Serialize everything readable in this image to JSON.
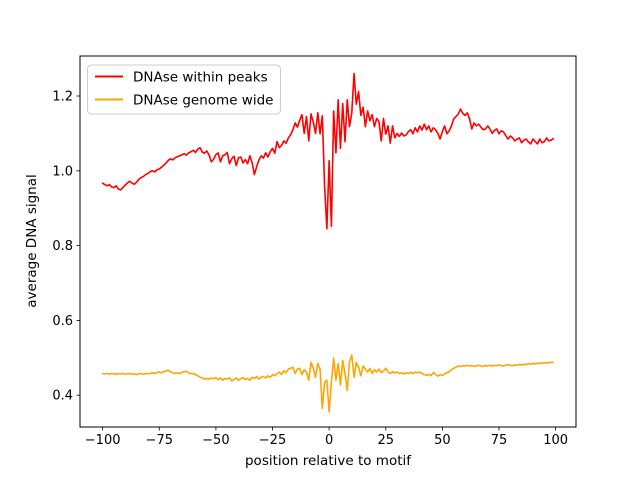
{
  "figure": {
    "background": "#ffffff"
  },
  "chart_data": {
    "type": "line",
    "title": "",
    "xlabel": "position relative to motif",
    "ylabel": "average DNA signal",
    "xlim": [
      -110,
      109
    ],
    "ylim": [
      0.315,
      1.307
    ],
    "xticks": [
      -100,
      -75,
      -50,
      -25,
      0,
      25,
      50,
      75,
      100
    ],
    "xtick_labels": [
      "−100",
      "−75",
      "−50",
      "−25",
      "0",
      "25",
      "50",
      "75",
      "100"
    ],
    "yticks": [
      0.4,
      0.6,
      0.8,
      1.0,
      1.2
    ],
    "ytick_labels": [
      "0.4",
      "0.6",
      "0.8",
      "1.0",
      "1.2"
    ],
    "grid": false,
    "legend": {
      "position": "upper left",
      "border_color": "#cccccc"
    },
    "x": [
      -100,
      -99,
      -98,
      -97,
      -96,
      -95,
      -94,
      -93,
      -92,
      -91,
      -90,
      -89,
      -88,
      -87,
      -86,
      -85,
      -84,
      -83,
      -82,
      -81,
      -80,
      -79,
      -78,
      -77,
      -76,
      -75,
      -74,
      -73,
      -72,
      -71,
      -70,
      -69,
      -68,
      -67,
      -66,
      -65,
      -64,
      -63,
      -62,
      -61,
      -60,
      -59,
      -58,
      -57,
      -56,
      -55,
      -54,
      -53,
      -52,
      -51,
      -50,
      -49,
      -48,
      -47,
      -46,
      -45,
      -44,
      -43,
      -42,
      -41,
      -40,
      -39,
      -38,
      -37,
      -36,
      -35,
      -34,
      -33,
      -32,
      -31,
      -30,
      -29,
      -28,
      -27,
      -26,
      -25,
      -24,
      -23,
      -22,
      -21,
      -20,
      -19,
      -18,
      -17,
      -16,
      -15,
      -14,
      -13,
      -12,
      -11,
      -10,
      -9,
      -8,
      -7,
      -6,
      -5,
      -4,
      -3,
      -2,
      -1,
      0,
      1,
      2,
      3,
      4,
      5,
      6,
      7,
      8,
      9,
      10,
      11,
      12,
      13,
      14,
      15,
      16,
      17,
      18,
      19,
      20,
      21,
      22,
      23,
      24,
      25,
      26,
      27,
      28,
      29,
      30,
      31,
      32,
      33,
      34,
      35,
      36,
      37,
      38,
      39,
      40,
      41,
      42,
      43,
      44,
      45,
      46,
      47,
      48,
      49,
      50,
      51,
      52,
      53,
      54,
      55,
      56,
      57,
      58,
      59,
      60,
      61,
      62,
      63,
      64,
      65,
      66,
      67,
      68,
      69,
      70,
      71,
      72,
      73,
      74,
      75,
      76,
      77,
      78,
      79,
      80,
      81,
      82,
      83,
      84,
      85,
      86,
      87,
      88,
      89,
      90,
      91,
      92,
      93,
      94,
      95,
      96,
      97,
      98,
      99
    ],
    "series": [
      {
        "name": "DNAse within peaks",
        "color": "#ff0000",
        "values": [
          0.967,
          0.963,
          0.96,
          0.963,
          0.957,
          0.955,
          0.96,
          0.951,
          0.949,
          0.956,
          0.962,
          0.968,
          0.972,
          0.967,
          0.964,
          0.97,
          0.977,
          0.982,
          0.985,
          0.99,
          0.993,
          0.998,
          1.0,
          0.997,
          1.003,
          1.005,
          1.01,
          1.015,
          1.021,
          1.028,
          1.032,
          1.029,
          1.035,
          1.038,
          1.04,
          1.043,
          1.046,
          1.042,
          1.048,
          1.051,
          1.055,
          1.049,
          1.058,
          1.062,
          1.05,
          1.047,
          1.053,
          1.042,
          1.024,
          1.031,
          1.043,
          1.048,
          1.024,
          1.04,
          1.043,
          1.049,
          1.019,
          1.032,
          1.039,
          1.014,
          1.035,
          1.037,
          1.021,
          1.03,
          1.019,
          1.04,
          1.022,
          0.99,
          1.011,
          1.029,
          1.04,
          1.034,
          1.048,
          1.037,
          1.051,
          1.06,
          1.047,
          1.078,
          1.062,
          1.068,
          1.08,
          1.074,
          1.088,
          1.096,
          1.11,
          1.128,
          1.117,
          1.135,
          1.15,
          1.1,
          1.145,
          1.08,
          1.152,
          1.13,
          1.1,
          1.155,
          1.099,
          1.147,
          0.958,
          0.845,
          1.027,
          0.852,
          1.16,
          1.048,
          1.19,
          1.06,
          1.18,
          1.078,
          1.19,
          1.118,
          1.155,
          1.26,
          1.178,
          1.212,
          1.148,
          1.17,
          1.118,
          1.16,
          1.134,
          1.15,
          1.118,
          1.14,
          1.132,
          1.08,
          1.14,
          1.098,
          1.12,
          1.074,
          1.12,
          1.088,
          1.1,
          1.092,
          1.101,
          1.093,
          1.096,
          1.105,
          1.11,
          1.099,
          1.115,
          1.104,
          1.12,
          1.109,
          1.125,
          1.11,
          1.12,
          1.104,
          1.115,
          1.11,
          1.1,
          1.085,
          1.105,
          1.12,
          1.099,
          1.107,
          1.12,
          1.139,
          1.145,
          1.152,
          1.165,
          1.154,
          1.148,
          1.155,
          1.139,
          1.112,
          1.128,
          1.12,
          1.125,
          1.117,
          1.11,
          1.112,
          1.12,
          1.112,
          1.1,
          1.108,
          1.112,
          1.099,
          1.107,
          1.104,
          1.094,
          1.085,
          1.093,
          1.088,
          1.08,
          1.085,
          1.088,
          1.075,
          1.082,
          1.085,
          1.077,
          1.072,
          1.085,
          1.078,
          1.072,
          1.085,
          1.075,
          1.078,
          1.088,
          1.08,
          1.082,
          1.086
        ]
      },
      {
        "name": "DNAse genome wide",
        "color": "#ffa500",
        "values": [
          0.458,
          0.457,
          0.458,
          0.456,
          0.458,
          0.457,
          0.456,
          0.458,
          0.457,
          0.458,
          0.456,
          0.457,
          0.458,
          0.456,
          0.457,
          0.455,
          0.457,
          0.458,
          0.456,
          0.458,
          0.457,
          0.458,
          0.46,
          0.458,
          0.461,
          0.462,
          0.46,
          0.463,
          0.465,
          0.467,
          0.462,
          0.46,
          0.458,
          0.46,
          0.458,
          0.461,
          0.463,
          0.464,
          0.46,
          0.458,
          0.458,
          0.455,
          0.452,
          0.448,
          0.446,
          0.443,
          0.445,
          0.443,
          0.446,
          0.444,
          0.447,
          0.442,
          0.446,
          0.44,
          0.445,
          0.443,
          0.447,
          0.438,
          0.442,
          0.446,
          0.44,
          0.444,
          0.447,
          0.442,
          0.445,
          0.44,
          0.448,
          0.445,
          0.45,
          0.443,
          0.448,
          0.45,
          0.446,
          0.452,
          0.448,
          0.455,
          0.452,
          0.458,
          0.462,
          0.455,
          0.465,
          0.46,
          0.47,
          0.472,
          0.475,
          0.458,
          0.47,
          0.472,
          0.455,
          0.468,
          0.462,
          0.44,
          0.488,
          0.472,
          0.448,
          0.485,
          0.47,
          0.365,
          0.435,
          0.44,
          0.355,
          0.435,
          0.499,
          0.44,
          0.485,
          0.427,
          0.493,
          0.458,
          0.413,
          0.49,
          0.507,
          0.448,
          0.488,
          0.475,
          0.452,
          0.478,
          0.47,
          0.462,
          0.472,
          0.458,
          0.468,
          0.462,
          0.47,
          0.46,
          0.465,
          0.472,
          0.462,
          0.458,
          0.463,
          0.46,
          0.462,
          0.458,
          0.46,
          0.457,
          0.46,
          0.458,
          0.461,
          0.458,
          0.462,
          0.46,
          0.462,
          0.458,
          0.455,
          0.453,
          0.456,
          0.452,
          0.461,
          0.455,
          0.451,
          0.455,
          0.453,
          0.457,
          0.46,
          0.463,
          0.468,
          0.472,
          0.475,
          0.478,
          0.477,
          0.479,
          0.478,
          0.48,
          0.478,
          0.479,
          0.477,
          0.478,
          0.48,
          0.478,
          0.477,
          0.479,
          0.478,
          0.48,
          0.478,
          0.48,
          0.479,
          0.481,
          0.479,
          0.478,
          0.48,
          0.482,
          0.48,
          0.479,
          0.481,
          0.48,
          0.482,
          0.481,
          0.483,
          0.482,
          0.484,
          0.483,
          0.485,
          0.484,
          0.485,
          0.486,
          0.485,
          0.487,
          0.486,
          0.487,
          0.488,
          0.488
        ]
      }
    ]
  }
}
